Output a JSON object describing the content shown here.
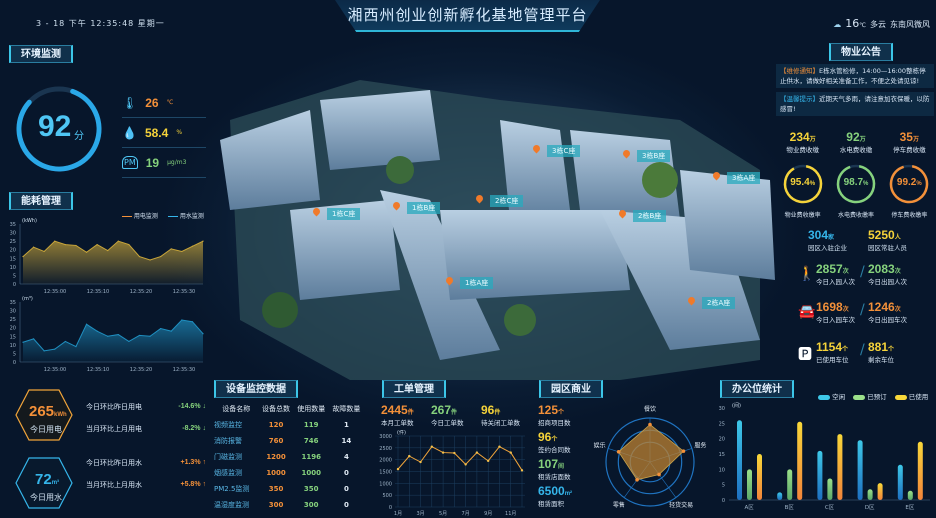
{
  "header": {
    "title": "湘西州创业创新孵化基地管理平台",
    "datetime": "3 - 18  下午  12:35:48  星期一",
    "weather": {
      "icon": "cloud-sun-icon",
      "temp": "16",
      "temp_unit": "℃",
      "condition": "多云",
      "wind": "东南风微风"
    }
  },
  "colors": {
    "orange": "#f39039",
    "yellow": "#f5d33a",
    "green": "#86d27d",
    "blue": "#35b5ea"
  },
  "env": {
    "title": "环境监测",
    "score": "92",
    "score_unit": "分",
    "score_fraction": 0.92,
    "items": [
      {
        "icon": "thermometer-icon",
        "value": "26",
        "unit": "℃"
      },
      {
        "icon": "humidity-icon",
        "value": "58.4",
        "unit": "%"
      },
      {
        "icon": "pm25-icon",
        "value": "19",
        "unit": "μg/m3"
      }
    ]
  },
  "energy": {
    "title": "能耗管理",
    "legend": [
      "用电监测",
      "用水监测"
    ],
    "elec_chart": {
      "unit": "(kWh)",
      "yticks": [
        0,
        5,
        10,
        15,
        20,
        25,
        30,
        35
      ],
      "xticks": [
        "12:35:00",
        "12:35:10",
        "12:35:20",
        "12:35:30"
      ],
      "values": [
        16,
        21.5,
        19,
        25,
        23,
        22.5,
        18.5,
        23,
        19.5,
        25,
        23,
        16,
        14,
        16,
        20.5,
        19,
        22,
        25
      ]
    },
    "water_chart": {
      "unit": "(m³)",
      "yticks": [
        0,
        5,
        10,
        15,
        20,
        25,
        30,
        35
      ],
      "xticks": [
        "12:35:00",
        "12:35:10",
        "12:35:20",
        "12:35:30"
      ],
      "values": [
        11.5,
        13.5,
        6.5,
        7.5,
        12,
        9,
        22,
        18,
        15,
        16,
        12,
        15.5,
        15,
        19.5,
        18,
        24.5,
        23.5,
        16.5
      ]
    },
    "elec": {
      "value": "265",
      "unit": "kWh",
      "label": "今日用电",
      "rows": [
        {
          "label": "今日环比昨日用电",
          "value": "-14.6%",
          "arrow": "↓"
        },
        {
          "label": "当月环比上月用电",
          "value": "-8.2%",
          "arrow": "↓"
        }
      ]
    },
    "water": {
      "value": "72",
      "unit": "m³",
      "label": "今日用水",
      "rows": [
        {
          "label": "今日环比昨日用水",
          "value": "+1.3%",
          "arrow": "↑"
        },
        {
          "label": "当月环比上月用水",
          "value": "+5.8%",
          "arrow": "↑"
        }
      ]
    }
  },
  "campus": {
    "tags": [
      "1栋C座",
      "1栋B座",
      "2栋C座",
      "3栋C座",
      "3栋B座",
      "3栋A座",
      "2栋B座",
      "1栋A座",
      "2栋A座"
    ]
  },
  "notice": {
    "title": "物业公告",
    "items": [
      {
        "tag": "【维修通知】",
        "text": "E栋水管检修，14:00—16:00整栋停止供水，请做好相关准备工作，不便之处请见谅!"
      },
      {
        "tag": "【温馨提示】",
        "text": "近期天气多雨，请注意加衣保暖，以防感冒!"
      }
    ]
  },
  "fees": [
    {
      "value": "234",
      "unit": "万",
      "label": "物业费收缴"
    },
    {
      "value": "92",
      "unit": "万",
      "label": "水电费收缴"
    },
    {
      "value": "35",
      "unit": "万",
      "label": "停车费收缴"
    }
  ],
  "rates": [
    {
      "value": "95.4",
      "unit": "%",
      "label": "物业费收缴率",
      "fraction": 0.954
    },
    {
      "value": "98.7",
      "unit": "%",
      "label": "水电费收缴率",
      "fraction": 0.987
    },
    {
      "value": "99.2",
      "unit": "%",
      "label": "停车费收缴率",
      "fraction": 0.992
    }
  ],
  "park": {
    "companies": {
      "value": "304",
      "unit": "家",
      "label": "园区入驻企业"
    },
    "residents": {
      "value": "5250",
      "unit": "人",
      "label": "园区常驻人员"
    },
    "people": [
      {
        "value": "2857",
        "unit": "次",
        "label": "今日入园人次"
      },
      {
        "value": "2083",
        "unit": "次",
        "label": "今日出园人次"
      }
    ],
    "cars": [
      {
        "value": "1698",
        "unit": "次",
        "label": "今日入园车次"
      },
      {
        "value": "1246",
        "unit": "次",
        "label": "今日出园车次"
      }
    ],
    "parking": [
      {
        "value": "1154",
        "unit": "个",
        "label": "已使用车位"
      },
      {
        "value": "881",
        "unit": "个",
        "label": "剩余车位"
      }
    ]
  },
  "devices": {
    "title": "设备监控数据",
    "headers": [
      "设备名称",
      "设备总数",
      "使用数量",
      "故障数量"
    ],
    "rows": [
      [
        "视频监控",
        "120",
        "119",
        "1"
      ],
      [
        "消防报警",
        "760",
        "746",
        "14"
      ],
      [
        "门磁监测",
        "1200",
        "1196",
        "4"
      ],
      [
        "烟感监测",
        "1000",
        "1000",
        "0"
      ],
      [
        "PM2.5监测",
        "350",
        "350",
        "0"
      ],
      [
        "温湿度监测",
        "300",
        "300",
        "0"
      ]
    ]
  },
  "workorder": {
    "title": "工单管理",
    "stats": [
      {
        "value": "2445",
        "unit": "件",
        "label": "本月工单数"
      },
      {
        "value": "267",
        "unit": "件",
        "label": "今日工单数"
      },
      {
        "value": "96",
        "unit": "件",
        "label": "待关闭工单数"
      }
    ],
    "chart_data": {
      "type": "line",
      "unit": "(件)",
      "categories": [
        "1月",
        "2月",
        "3月",
        "4月",
        "5月",
        "6月",
        "7月",
        "8月",
        "9月",
        "10月",
        "11月",
        "12月"
      ],
      "xticks": [
        "1月",
        "3月",
        "5月",
        "7月",
        "9月",
        "11月"
      ],
      "values": [
        1600,
        2150,
        1900,
        2550,
        2300,
        2280,
        1800,
        2300,
        1950,
        2550,
        2300,
        1550
      ],
      "ylim": [
        0,
        3000
      ],
      "yticks": [
        0,
        500,
        1000,
        1500,
        2000,
        2500,
        3000
      ]
    }
  },
  "commerce": {
    "title": "园区商业",
    "stats": [
      {
        "value": "125",
        "unit": "个",
        "label": "招商项目数"
      },
      {
        "value": "96",
        "unit": "个",
        "label": "签约合同数"
      },
      {
        "value": "107",
        "unit": "间",
        "label": "租赁店面数"
      },
      {
        "value": "6500",
        "unit": "m²",
        "label": "租赁面积"
      }
    ],
    "chart_data": {
      "type": "radar",
      "axes": [
        "餐饮",
        "服务",
        "轻货交易",
        "零售",
        "娱乐"
      ],
      "values": [
        0.85,
        0.8,
        0.35,
        0.5,
        0.75
      ]
    }
  },
  "office": {
    "title": "办公位统计",
    "chart_data": {
      "type": "bar",
      "unit": "(间)",
      "categories": [
        "A区",
        "B区",
        "C区",
        "D区",
        "E区"
      ],
      "ylim": [
        0,
        30
      ],
      "yticks": [
        0,
        5,
        10,
        15,
        20,
        25,
        30
      ],
      "series": [
        {
          "name": "空闲",
          "values": [
            26,
            2.5,
            16,
            19.5,
            11.5
          ]
        },
        {
          "name": "已预订",
          "values": [
            10,
            10,
            7,
            3.5,
            3
          ]
        },
        {
          "name": "已使用",
          "values": [
            15,
            25.5,
            21.5,
            5.5,
            19
          ]
        }
      ]
    }
  }
}
